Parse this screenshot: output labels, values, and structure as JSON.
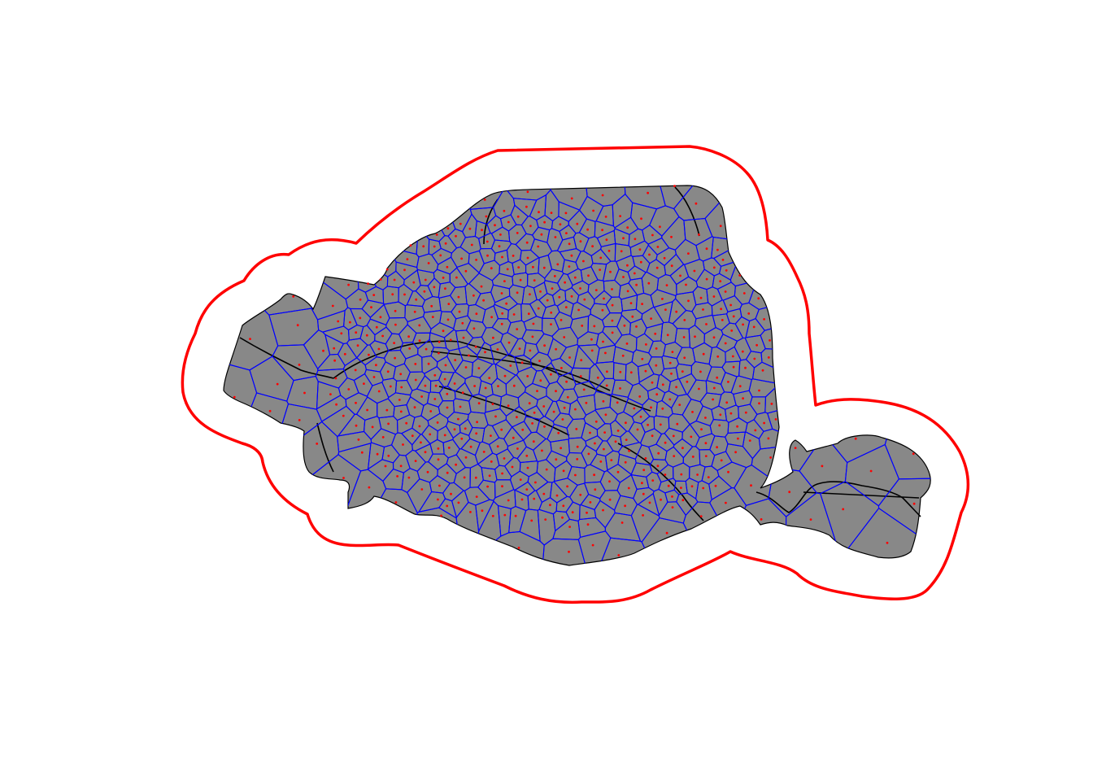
{
  "map": {
    "kind": "voronoi-tessellation",
    "fill_color": "#888888",
    "cell_stroke_color": "#0000ff",
    "point_color": "#ff0000",
    "buffer_stroke_color": "#ff0000",
    "street_stroke_color": "#000000",
    "background_color": "#ffffff"
  }
}
